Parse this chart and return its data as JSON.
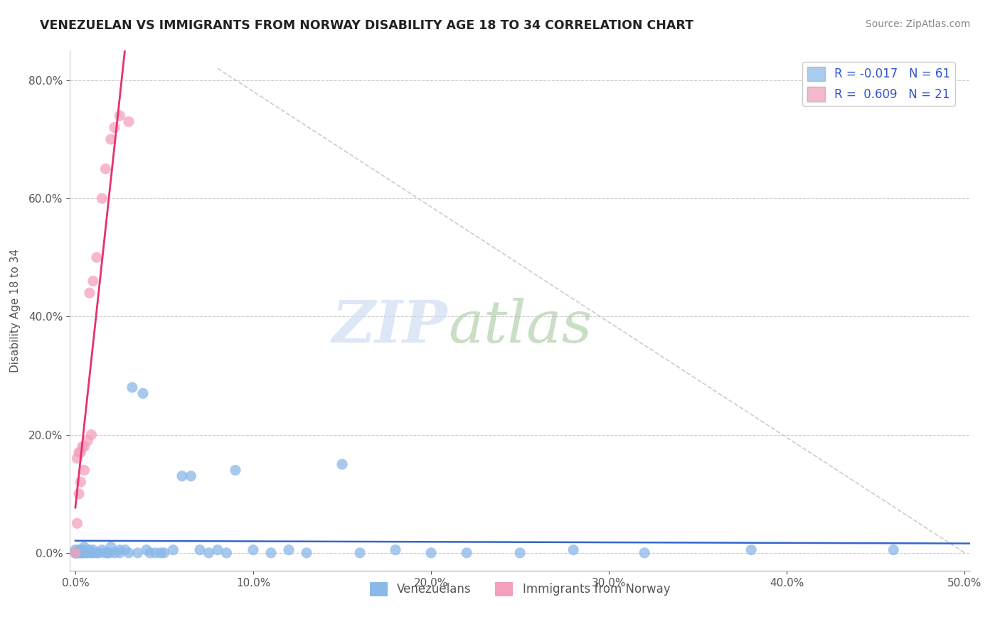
{
  "title": "VENEZUELAN VS IMMIGRANTS FROM NORWAY DISABILITY AGE 18 TO 34 CORRELATION CHART",
  "source": "Source: ZipAtlas.com",
  "ylabel": "Disability Age 18 to 34",
  "xlim": [
    -0.003,
    0.503
  ],
  "ylim": [
    -0.03,
    0.85
  ],
  "xtick_values": [
    0.0,
    0.1,
    0.2,
    0.3,
    0.4,
    0.5
  ],
  "ytick_values": [
    0.0,
    0.2,
    0.4,
    0.6,
    0.8
  ],
  "legend_upper": [
    {
      "label": "R = -0.017   N = 61",
      "color": "#aaccf0"
    },
    {
      "label": "R =  0.609   N = 21",
      "color": "#f5b8cc"
    }
  ],
  "venezuelan_color": "#8ab8e8",
  "norway_color": "#f5a0bb",
  "venezuelan_line_color": "#3366cc",
  "norway_line_color": "#e83070",
  "diag_color": "#cccccc",
  "venezuelan_x": [
    0.0,
    0.0,
    0.0,
    0.001,
    0.001,
    0.002,
    0.002,
    0.003,
    0.003,
    0.004,
    0.004,
    0.005,
    0.005,
    0.006,
    0.007,
    0.008,
    0.009,
    0.01,
    0.01,
    0.012,
    0.013,
    0.015,
    0.016,
    0.018,
    0.019,
    0.02,
    0.022,
    0.025,
    0.025,
    0.028,
    0.03,
    0.032,
    0.035,
    0.038,
    0.04,
    0.042,
    0.045,
    0.048,
    0.05,
    0.055,
    0.06,
    0.065,
    0.07,
    0.075,
    0.08,
    0.085,
    0.09,
    0.1,
    0.11,
    0.12,
    0.13,
    0.15,
    0.16,
    0.18,
    0.2,
    0.22,
    0.25,
    0.28,
    0.32,
    0.38,
    0.46
  ],
  "venezuelan_y": [
    0.0,
    0.005,
    0.0,
    0.0,
    0.0,
    0.005,
    0.0,
    0.0,
    0.005,
    0.0,
    0.0,
    0.005,
    0.01,
    0.0,
    0.0,
    0.005,
    0.0,
    0.0,
    0.005,
    0.0,
    0.0,
    0.005,
    0.0,
    0.0,
    0.0,
    0.01,
    0.0,
    0.005,
    0.0,
    0.005,
    0.0,
    0.28,
    0.0,
    0.27,
    0.005,
    0.0,
    0.0,
    0.0,
    0.0,
    0.005,
    0.13,
    0.13,
    0.005,
    0.0,
    0.005,
    0.0,
    0.14,
    0.005,
    0.0,
    0.005,
    0.0,
    0.15,
    0.0,
    0.005,
    0.0,
    0.0,
    0.0,
    0.005,
    0.0,
    0.005,
    0.005
  ],
  "norway_x": [
    0.0,
    0.001,
    0.001,
    0.002,
    0.002,
    0.003,
    0.003,
    0.004,
    0.005,
    0.005,
    0.007,
    0.008,
    0.009,
    0.01,
    0.012,
    0.015,
    0.017,
    0.02,
    0.022,
    0.025,
    0.03
  ],
  "norway_y": [
    0.0,
    0.16,
    0.05,
    0.17,
    0.1,
    0.17,
    0.12,
    0.18,
    0.18,
    0.14,
    0.19,
    0.44,
    0.2,
    0.46,
    0.5,
    0.6,
    0.65,
    0.7,
    0.72,
    0.74,
    0.73
  ],
  "ven_trend_x0": 0.0,
  "ven_trend_x1": 0.503,
  "ven_trend_y0": 0.018,
  "ven_trend_y1": 0.016,
  "nor_trend_x0": 0.0,
  "nor_trend_x1": 0.025,
  "nor_trend_y0": 0.0,
  "nor_trend_y1": 0.8
}
